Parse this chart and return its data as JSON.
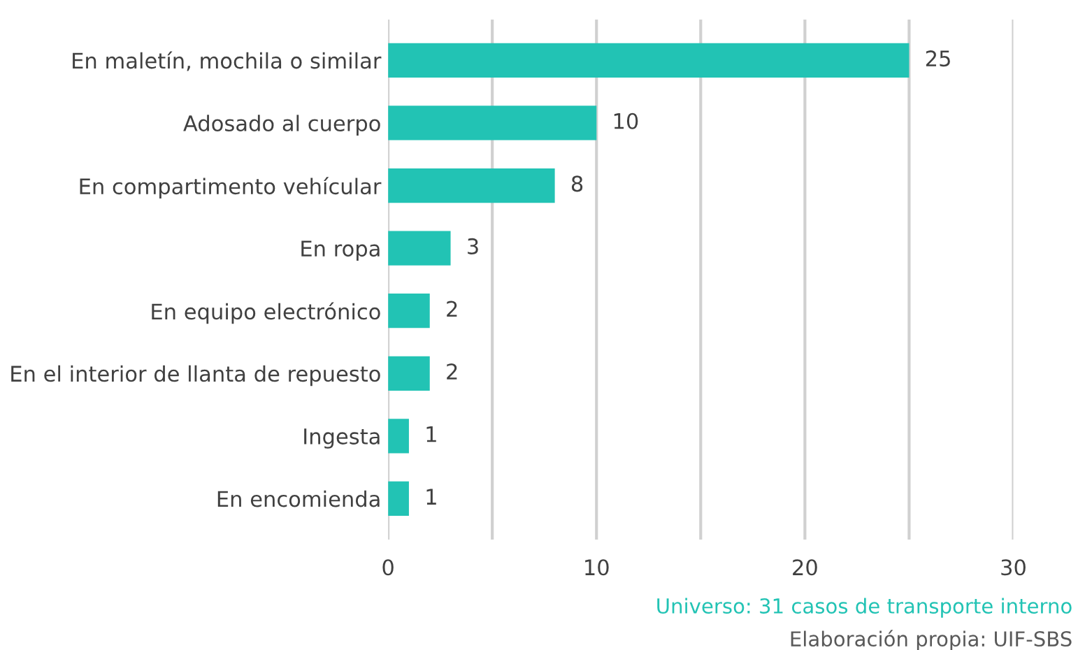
{
  "chart_data": {
    "type": "bar",
    "orientation": "horizontal",
    "categories": [
      "En maletín, mochila o similar",
      "Adosado al cuerpo",
      "En compartimento vehícular",
      "En ropa",
      "En equipo electrónico",
      "En el interior de llanta de repuesto",
      "Ingesta",
      "En encomienda"
    ],
    "values": [
      25,
      10,
      8,
      3,
      2,
      2,
      1,
      1
    ],
    "color": "#22c3b4",
    "xlim": [
      0,
      30
    ],
    "xticks": [
      0,
      {
        "value": 5,
        "label": null
      },
      10,
      {
        "value": 15,
        "label": null
      },
      20,
      {
        "value": 25,
        "label": null
      },
      30
    ],
    "grid": "x",
    "data_labels": true,
    "legend": false,
    "annotations": [
      "Universo: 31 casos de transporte interno",
      "Elaboración propia: UIF-SBS"
    ]
  }
}
